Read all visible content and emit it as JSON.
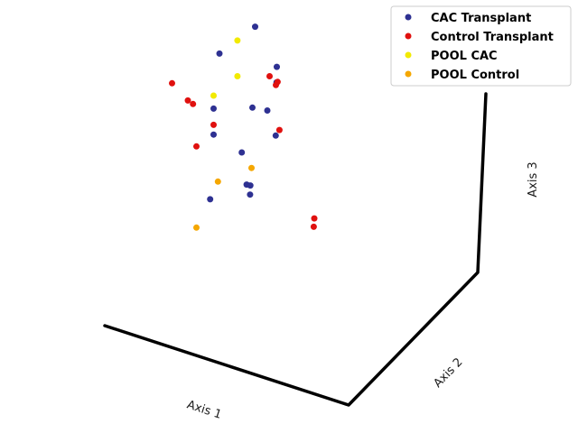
{
  "chart_data": {
    "type": "scatter",
    "projection": "3d",
    "axis_labels": [
      "Axis 1",
      "Axis 2",
      "Axis 3"
    ],
    "grid": false,
    "legend_position": "top-right",
    "series": [
      {
        "name": "CAC Transplant",
        "color": "#2e3192",
        "points": [
          [
            0.55,
            0.4,
            0.95
          ],
          [
            0.35,
            0.45,
            0.85
          ],
          [
            0.7,
            0.55,
            0.8
          ],
          [
            0.7,
            0.56,
            0.75
          ],
          [
            0.3,
            0.35,
            0.7
          ],
          [
            0.55,
            0.5,
            0.68
          ],
          [
            0.64,
            0.52,
            0.67
          ],
          [
            0.3,
            0.35,
            0.62
          ],
          [
            0.7,
            0.59,
            0.58
          ],
          [
            0.48,
            0.45,
            0.55
          ],
          [
            0.51,
            0.46,
            0.45
          ],
          [
            0.53,
            0.45,
            0.45
          ],
          [
            0.28,
            0.35,
            0.42
          ],
          [
            0.53,
            0.46,
            0.42
          ]
        ]
      },
      {
        "name": "Control Transplant",
        "color": "#e0110f",
        "points": [
          [
            0.65,
            0.5,
            0.78
          ],
          [
            0.7,
            0.52,
            0.76
          ],
          [
            0.69,
            0.52,
            0.75
          ],
          [
            0.05,
            0.3,
            0.78
          ],
          [
            0.15,
            0.35,
            0.72
          ],
          [
            0.18,
            0.35,
            0.71
          ],
          [
            0.3,
            0.35,
            0.65
          ],
          [
            0.72,
            0.58,
            0.6
          ],
          [
            0.2,
            0.35,
            0.58
          ],
          [
            0.95,
            0.75,
            0.3
          ],
          [
            0.95,
            0.77,
            0.27
          ]
        ]
      },
      {
        "name": "POOL CAC",
        "color": "#f2ea00",
        "points": [
          [
            0.45,
            0.42,
            0.9
          ],
          [
            0.45,
            0.42,
            0.79
          ],
          [
            0.3,
            0.35,
            0.74
          ]
        ]
      },
      {
        "name": "POOL Control",
        "color": "#f5a700",
        "points": [
          [
            0.54,
            0.47,
            0.5
          ],
          [
            0.33,
            0.38,
            0.47
          ],
          [
            0.2,
            0.35,
            0.33
          ]
        ]
      }
    ]
  }
}
